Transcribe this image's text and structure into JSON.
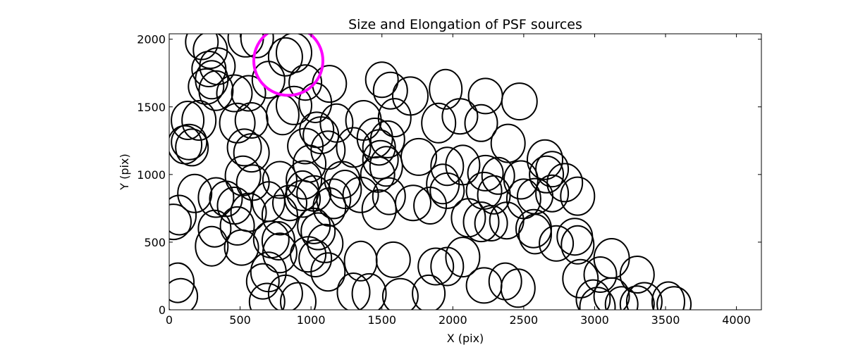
{
  "chart_data": {
    "type": "scatter",
    "title": "Size and Elongation of PSF sources",
    "xlabel": "X (pix)",
    "ylabel": "Y (pix)",
    "xlim": [
      0,
      4176
    ],
    "ylim": [
      0,
      2040
    ],
    "x_ticks": [
      0,
      500,
      1000,
      1500,
      2000,
      2500,
      3000,
      3500,
      4000
    ],
    "y_ticks": [
      0,
      500,
      1000,
      1500,
      2000
    ],
    "grid": false,
    "marker": "ellipse",
    "marker_color": "#000000",
    "highlight_color": "#ff00ff",
    "sources": [
      {
        "x": 230,
        "y": 1980
      },
      {
        "x": 290,
        "y": 1920
      },
      {
        "x": 540,
        "y": 2010
      },
      {
        "x": 620,
        "y": 2010
      },
      {
        "x": 280,
        "y": 1780
      },
      {
        "x": 340,
        "y": 1800
      },
      {
        "x": 300,
        "y": 1700
      },
      {
        "x": 330,
        "y": 1620
      },
      {
        "x": 260,
        "y": 1650
      },
      {
        "x": 700,
        "y": 1700
      },
      {
        "x": 820,
        "y": 1870
      },
      {
        "x": 880,
        "y": 1900
      },
      {
        "x": 960,
        "y": 1680
      },
      {
        "x": 1130,
        "y": 1670
      },
      {
        "x": 880,
        "y": 1510
      },
      {
        "x": 1030,
        "y": 1530
      },
      {
        "x": 560,
        "y": 1600
      },
      {
        "x": 460,
        "y": 1600
      },
      {
        "x": 130,
        "y": 1400
      },
      {
        "x": 210,
        "y": 1400
      },
      {
        "x": 140,
        "y": 1240
      },
      {
        "x": 160,
        "y": 1200
      },
      {
        "x": 110,
        "y": 1220
      },
      {
        "x": 480,
        "y": 1380
      },
      {
        "x": 580,
        "y": 1400
      },
      {
        "x": 530,
        "y": 1200
      },
      {
        "x": 580,
        "y": 1160
      },
      {
        "x": 800,
        "y": 1440
      },
      {
        "x": 1040,
        "y": 1330
      },
      {
        "x": 1070,
        "y": 1290
      },
      {
        "x": 1180,
        "y": 1380
      },
      {
        "x": 1300,
        "y": 1200
      },
      {
        "x": 960,
        "y": 1210
      },
      {
        "x": 990,
        "y": 1080
      },
      {
        "x": 1120,
        "y": 1180
      },
      {
        "x": 1370,
        "y": 1400
      },
      {
        "x": 1500,
        "y": 1700
      },
      {
        "x": 1560,
        "y": 1620
      },
      {
        "x": 1700,
        "y": 1580
      },
      {
        "x": 1950,
        "y": 1630
      },
      {
        "x": 2230,
        "y": 1580
      },
      {
        "x": 2470,
        "y": 1540
      },
      {
        "x": 1590,
        "y": 1420
      },
      {
        "x": 1900,
        "y": 1380
      },
      {
        "x": 2050,
        "y": 1430
      },
      {
        "x": 2200,
        "y": 1380
      },
      {
        "x": 2390,
        "y": 1230
      },
      {
        "x": 1450,
        "y": 1270
      },
      {
        "x": 1480,
        "y": 1200
      },
      {
        "x": 1540,
        "y": 1260
      },
      {
        "x": 1490,
        "y": 1110
      },
      {
        "x": 1530,
        "y": 1060
      },
      {
        "x": 1470,
        "y": 1000
      },
      {
        "x": 1760,
        "y": 1130
      },
      {
        "x": 1960,
        "y": 1060
      },
      {
        "x": 2070,
        "y": 1070
      },
      {
        "x": 2230,
        "y": 1010
      },
      {
        "x": 2320,
        "y": 990
      },
      {
        "x": 2480,
        "y": 960
      },
      {
        "x": 2650,
        "y": 1110
      },
      {
        "x": 2700,
        "y": 1040
      },
      {
        "x": 2660,
        "y": 1000
      },
      {
        "x": 2790,
        "y": 940
      },
      {
        "x": 1930,
        "y": 930
      },
      {
        "x": 1960,
        "y": 880
      },
      {
        "x": 2220,
        "y": 880
      },
      {
        "x": 2290,
        "y": 850
      },
      {
        "x": 2500,
        "y": 820
      },
      {
        "x": 2580,
        "y": 840
      },
      {
        "x": 2700,
        "y": 860
      },
      {
        "x": 2880,
        "y": 840
      },
      {
        "x": 520,
        "y": 990
      },
      {
        "x": 590,
        "y": 940
      },
      {
        "x": 780,
        "y": 960
      },
      {
        "x": 950,
        "y": 960
      },
      {
        "x": 940,
        "y": 880
      },
      {
        "x": 1020,
        "y": 860
      },
      {
        "x": 1220,
        "y": 960
      },
      {
        "x": 1240,
        "y": 890
      },
      {
        "x": 1160,
        "y": 820
      },
      {
        "x": 1350,
        "y": 850
      },
      {
        "x": 1550,
        "y": 840
      },
      {
        "x": 180,
        "y": 860
      },
      {
        "x": 330,
        "y": 830
      },
      {
        "x": 400,
        "y": 820
      },
      {
        "x": 460,
        "y": 770
      },
      {
        "x": 560,
        "y": 720
      },
      {
        "x": 700,
        "y": 800
      },
      {
        "x": 850,
        "y": 790
      },
      {
        "x": 940,
        "y": 820
      },
      {
        "x": 1130,
        "y": 760
      },
      {
        "x": 1480,
        "y": 740
      },
      {
        "x": 1720,
        "y": 790
      },
      {
        "x": 1840,
        "y": 770
      },
      {
        "x": 2110,
        "y": 680
      },
      {
        "x": 2200,
        "y": 650
      },
      {
        "x": 2270,
        "y": 640
      },
      {
        "x": 2380,
        "y": 660
      },
      {
        "x": 2570,
        "y": 600
      },
      {
        "x": 2580,
        "y": 560
      },
      {
        "x": 2730,
        "y": 490
      },
      {
        "x": 2860,
        "y": 540
      },
      {
        "x": 2880,
        "y": 480
      },
      {
        "x": 70,
        "y": 700
      },
      {
        "x": 30,
        "y": 650
      },
      {
        "x": 320,
        "y": 600
      },
      {
        "x": 480,
        "y": 620
      },
      {
        "x": 780,
        "y": 700
      },
      {
        "x": 1020,
        "y": 620
      },
      {
        "x": 1050,
        "y": 580
      },
      {
        "x": 1100,
        "y": 490
      },
      {
        "x": 1350,
        "y": 360
      },
      {
        "x": 1580,
        "y": 370
      },
      {
        "x": 1880,
        "y": 320
      },
      {
        "x": 1960,
        "y": 320
      },
      {
        "x": 2070,
        "y": 390
      },
      {
        "x": 2220,
        "y": 180
      },
      {
        "x": 2370,
        "y": 210
      },
      {
        "x": 2460,
        "y": 160
      },
      {
        "x": 3120,
        "y": 380
      },
      {
        "x": 3040,
        "y": 260
      },
      {
        "x": 3300,
        "y": 260
      },
      {
        "x": 2900,
        "y": 230
      },
      {
        "x": 300,
        "y": 470
      },
      {
        "x": 510,
        "y": 460
      },
      {
        "x": 720,
        "y": 520
      },
      {
        "x": 770,
        "y": 510
      },
      {
        "x": 780,
        "y": 420
      },
      {
        "x": 980,
        "y": 410
      },
      {
        "x": 1030,
        "y": 380
      },
      {
        "x": 1120,
        "y": 280
      },
      {
        "x": 700,
        "y": 280
      },
      {
        "x": 660,
        "y": 210
      },
      {
        "x": 820,
        "y": 120
      },
      {
        "x": 910,
        "y": 60
      },
      {
        "x": 60,
        "y": 200
      },
      {
        "x": 80,
        "y": 100
      },
      {
        "x": 690,
        "y": 60
      },
      {
        "x": 1300,
        "y": 130
      },
      {
        "x": 1410,
        "y": 120
      },
      {
        "x": 1630,
        "y": 100
      },
      {
        "x": 1830,
        "y": 120
      },
      {
        "x": 2990,
        "y": 80
      },
      {
        "x": 3020,
        "y": 20
      },
      {
        "x": 3190,
        "y": 40
      },
      {
        "x": 3300,
        "y": 40
      },
      {
        "x": 3350,
        "y": 60
      },
      {
        "x": 3520,
        "y": 60
      },
      {
        "x": 3560,
        "y": 40
      },
      {
        "x": 3120,
        "y": 100
      }
    ],
    "highlight": {
      "x": 840,
      "y": 1840
    }
  }
}
